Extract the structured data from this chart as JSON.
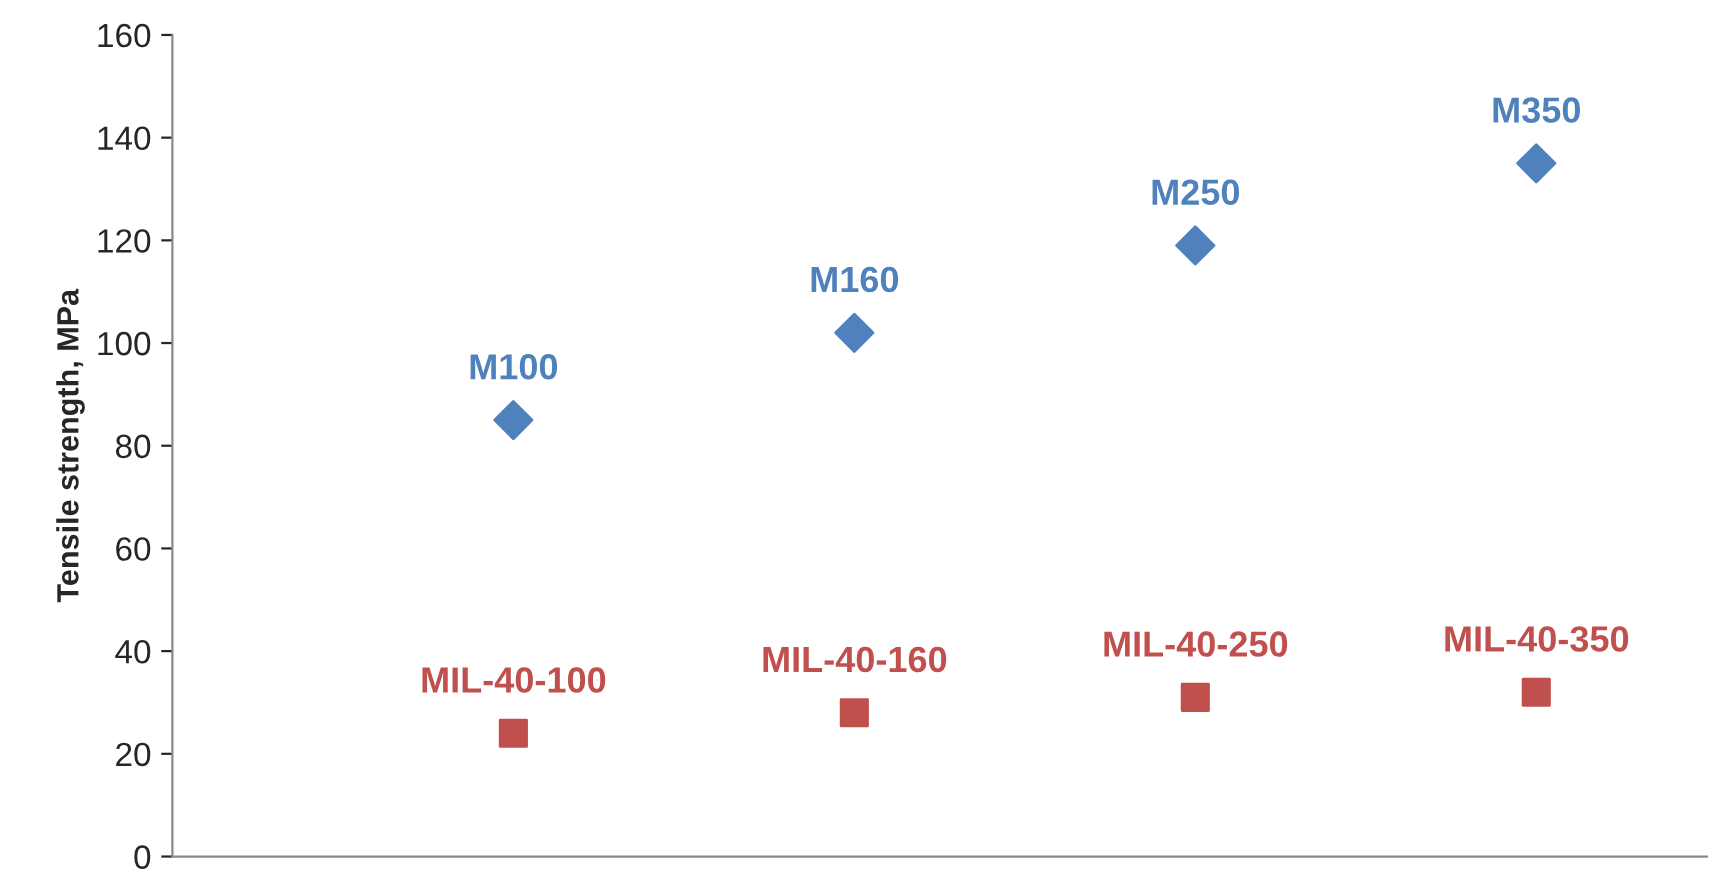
{
  "chart_data": {
    "type": "scatter",
    "ylabel": "Tensile strength, MPa",
    "categories": [
      null,
      null,
      null,
      null
    ],
    "series": [
      {
        "color": "#4f81bd",
        "marker": "diamond",
        "values": [
          85,
          102,
          119,
          135
        ],
        "value_labels": [
          "M100",
          "M160",
          "M250",
          "M350"
        ]
      },
      {
        "color": "#c0504d",
        "marker": "square",
        "values": [
          24,
          28,
          31,
          32
        ],
        "value_labels": [
          "MIL-40-100",
          "MIL-40-160",
          "MIL-40-250",
          "MIL-40-350"
        ]
      }
    ],
    "ylim": [
      0,
      160
    ],
    "yticks": [
      0,
      20,
      40,
      60,
      80,
      100,
      120,
      140,
      160
    ],
    "grid": false,
    "legend": false
  }
}
